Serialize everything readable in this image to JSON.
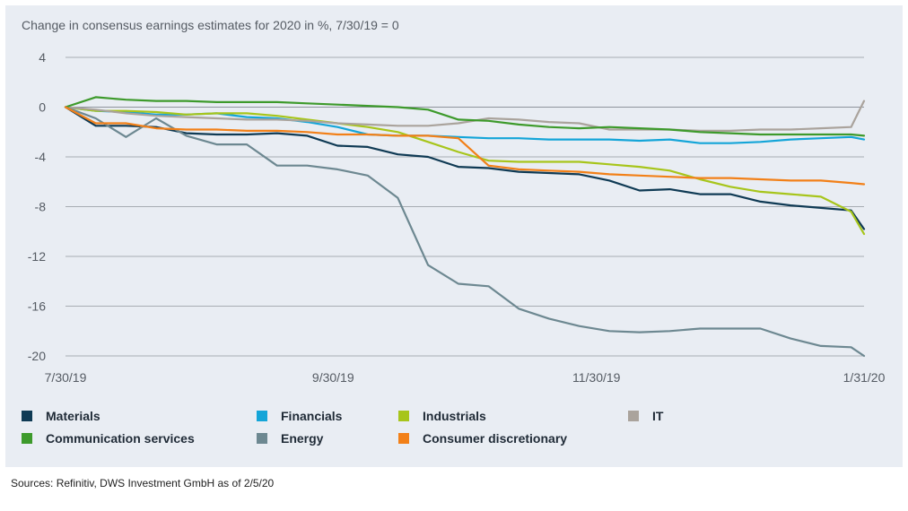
{
  "chart_data": {
    "type": "line",
    "title": "Change in consensus earnings estimates for 2020 in %, 7/30/19 = 0",
    "xlabel": "",
    "ylabel": "",
    "ylim": [
      -20,
      4
    ],
    "xlim": [
      "2019-07-30",
      "2020-01-31"
    ],
    "y_ticks": [
      4,
      0,
      -4,
      -8,
      -12,
      -16,
      -20
    ],
    "x_ticks": [
      {
        "date": "2019-07-30",
        "label": "7/30/19"
      },
      {
        "date": "2019-09-30",
        "label": "9/30/19"
      },
      {
        "date": "2019-11-30",
        "label": "11/30/19"
      },
      {
        "date": "2020-01-31",
        "label": "1/31/20"
      }
    ],
    "grid": "horizontal",
    "legend_position": "bottom",
    "x": [
      "2019-07-30",
      "2019-08-06",
      "2019-08-13",
      "2019-08-20",
      "2019-08-27",
      "2019-09-03",
      "2019-09-10",
      "2019-09-17",
      "2019-09-24",
      "2019-10-01",
      "2019-10-08",
      "2019-10-15",
      "2019-10-22",
      "2019-10-29",
      "2019-11-05",
      "2019-11-12",
      "2019-11-19",
      "2019-11-26",
      "2019-12-03",
      "2019-12-10",
      "2019-12-17",
      "2019-12-24",
      "2019-12-31",
      "2020-01-07",
      "2020-01-14",
      "2020-01-21",
      "2020-01-28",
      "2020-01-31"
    ],
    "series": [
      {
        "name": "Materials",
        "color": "#0f3a54",
        "values": [
          0,
          -1.5,
          -1.5,
          -1.6,
          -2.1,
          -2.2,
          -2.2,
          -2.1,
          -2.3,
          -3.1,
          -3.2,
          -3.8,
          -4.0,
          -4.8,
          -4.9,
          -5.2,
          -5.3,
          -5.4,
          -5.9,
          -6.7,
          -6.6,
          -7.0,
          -7.0,
          -7.6,
          -7.9,
          -8.1,
          -8.3,
          -9.8
        ]
      },
      {
        "name": "Financials",
        "color": "#14a5d8",
        "values": [
          0,
          -0.3,
          -0.4,
          -0.6,
          -0.6,
          -0.5,
          -0.8,
          -0.9,
          -1.2,
          -1.6,
          -2.2,
          -2.3,
          -2.3,
          -2.4,
          -2.5,
          -2.5,
          -2.6,
          -2.6,
          -2.6,
          -2.7,
          -2.6,
          -2.9,
          -2.9,
          -2.8,
          -2.6,
          -2.5,
          -2.4,
          -2.6
        ]
      },
      {
        "name": "Industrials",
        "color": "#a7c51b",
        "values": [
          0,
          -0.3,
          -0.3,
          -0.4,
          -0.6,
          -0.5,
          -0.5,
          -0.7,
          -1.0,
          -1.3,
          -1.6,
          -2.0,
          -2.8,
          -3.6,
          -4.3,
          -4.4,
          -4.4,
          -4.4,
          -4.6,
          -4.8,
          -5.1,
          -5.8,
          -6.4,
          -6.8,
          -7.0,
          -7.2,
          -8.4,
          -10.2
        ]
      },
      {
        "name": "IT",
        "color": "#aaa39c",
        "values": [
          0,
          -0.2,
          -0.5,
          -0.7,
          -0.8,
          -0.9,
          -1.0,
          -1.0,
          -1.1,
          -1.3,
          -1.4,
          -1.5,
          -1.5,
          -1.3,
          -0.9,
          -1.0,
          -1.2,
          -1.3,
          -1.8,
          -1.8,
          -1.8,
          -1.9,
          -1.9,
          -1.8,
          -1.8,
          -1.7,
          -1.6,
          0.5
        ]
      },
      {
        "name": "Communication services",
        "color": "#3d9a2b",
        "values": [
          0,
          0.8,
          0.6,
          0.5,
          0.5,
          0.4,
          0.4,
          0.4,
          0.3,
          0.2,
          0.1,
          0.0,
          -0.2,
          -1.0,
          -1.1,
          -1.4,
          -1.6,
          -1.7,
          -1.6,
          -1.7,
          -1.8,
          -2.0,
          -2.1,
          -2.2,
          -2.2,
          -2.2,
          -2.2,
          -2.3
        ]
      },
      {
        "name": "Energy",
        "color": "#6d8891",
        "values": [
          0,
          -0.9,
          -2.4,
          -0.9,
          -2.3,
          -3.0,
          -3.0,
          -4.7,
          -4.7,
          -5.0,
          -5.5,
          -7.3,
          -12.7,
          -14.2,
          -14.4,
          -16.2,
          -17.0,
          -17.6,
          -18.0,
          -18.1,
          -18.0,
          -17.8,
          -17.8,
          -17.8,
          -18.6,
          -19.2,
          -19.3,
          -20.0
        ]
      },
      {
        "name": "Consumer discretionary",
        "color": "#f28018",
        "values": [
          0,
          -1.3,
          -1.3,
          -1.7,
          -1.8,
          -1.8,
          -1.9,
          -1.9,
          -2.0,
          -2.2,
          -2.2,
          -2.3,
          -2.3,
          -2.5,
          -4.7,
          -5.0,
          -5.1,
          -5.2,
          -5.4,
          -5.5,
          -5.6,
          -5.7,
          -5.7,
          -5.8,
          -5.9,
          -5.9,
          -6.1,
          -6.2
        ]
      }
    ],
    "legend_rows": [
      [
        "Materials",
        "Financials",
        "Industrials",
        "IT"
      ],
      [
        "Communication services",
        "Energy",
        "Consumer discretionary"
      ]
    ]
  },
  "footer": {
    "source": "Sources: Refinitiv, DWS Investment GmbH as of 2/5/20"
  }
}
